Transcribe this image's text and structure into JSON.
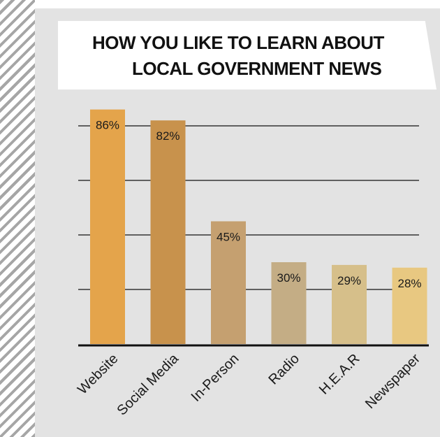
{
  "title_lines": [
    "HOW YOU LIKE TO LEARN ABOUT",
    "LOCAL GOVERNMENT NEWS"
  ],
  "chart_data": {
    "type": "bar",
    "title": "HOW YOU LIKE TO LEARN ABOUT LOCAL GOVERNMENT NEWS",
    "categories": [
      "Website",
      "Social Media",
      "In-Person",
      "Radio",
      "H.E.A.R",
      "Newspaper"
    ],
    "values": [
      86,
      82,
      45,
      30,
      29,
      28
    ],
    "value_labels": [
      "86%",
      "82%",
      "45%",
      "30%",
      "29%",
      "28%"
    ],
    "bar_colors": [
      "#e4a44b",
      "#c8924c",
      "#c5a070",
      "#c4ad85",
      "#d6bf8a",
      "#e8c881"
    ],
    "unit": "%",
    "xlabel": "",
    "ylabel": "",
    "ylim": [
      0,
      100
    ],
    "grid": true,
    "legend": "none"
  }
}
